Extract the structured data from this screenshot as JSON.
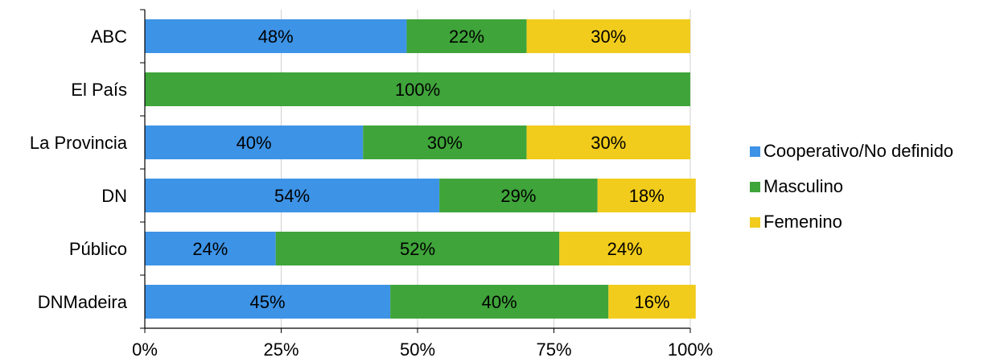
{
  "chart_data": {
    "type": "bar",
    "orientation": "horizontal",
    "stacked": "percent",
    "categories": [
      "ABC",
      "El País",
      "La Provincia",
      "DN",
      "Público",
      "DNMadeira"
    ],
    "series": [
      {
        "name": "Cooperativo/No definido",
        "color": "#3d93e6",
        "values": [
          48,
          0,
          40,
          54,
          24,
          45
        ],
        "labels": [
          "48%",
          "",
          "40%",
          "54%",
          "24%",
          "45%"
        ]
      },
      {
        "name": "Masculino",
        "color": "#3fa43a",
        "values": [
          22,
          100,
          30,
          29,
          52,
          40
        ],
        "labels": [
          "22%",
          "100%",
          "30%",
          "29%",
          "52%",
          "40%"
        ]
      },
      {
        "name": "Femenino",
        "color": "#f1cc1c",
        "values": [
          30,
          0,
          30,
          18,
          24,
          16
        ],
        "labels": [
          "30%",
          "",
          "30%",
          "18%",
          "24%",
          "16%"
        ]
      }
    ],
    "xticks": [
      "0%",
      "25%",
      "50%",
      "75%",
      "100%"
    ],
    "xlim": [
      0,
      100
    ],
    "grid": true,
    "legend": "right"
  }
}
